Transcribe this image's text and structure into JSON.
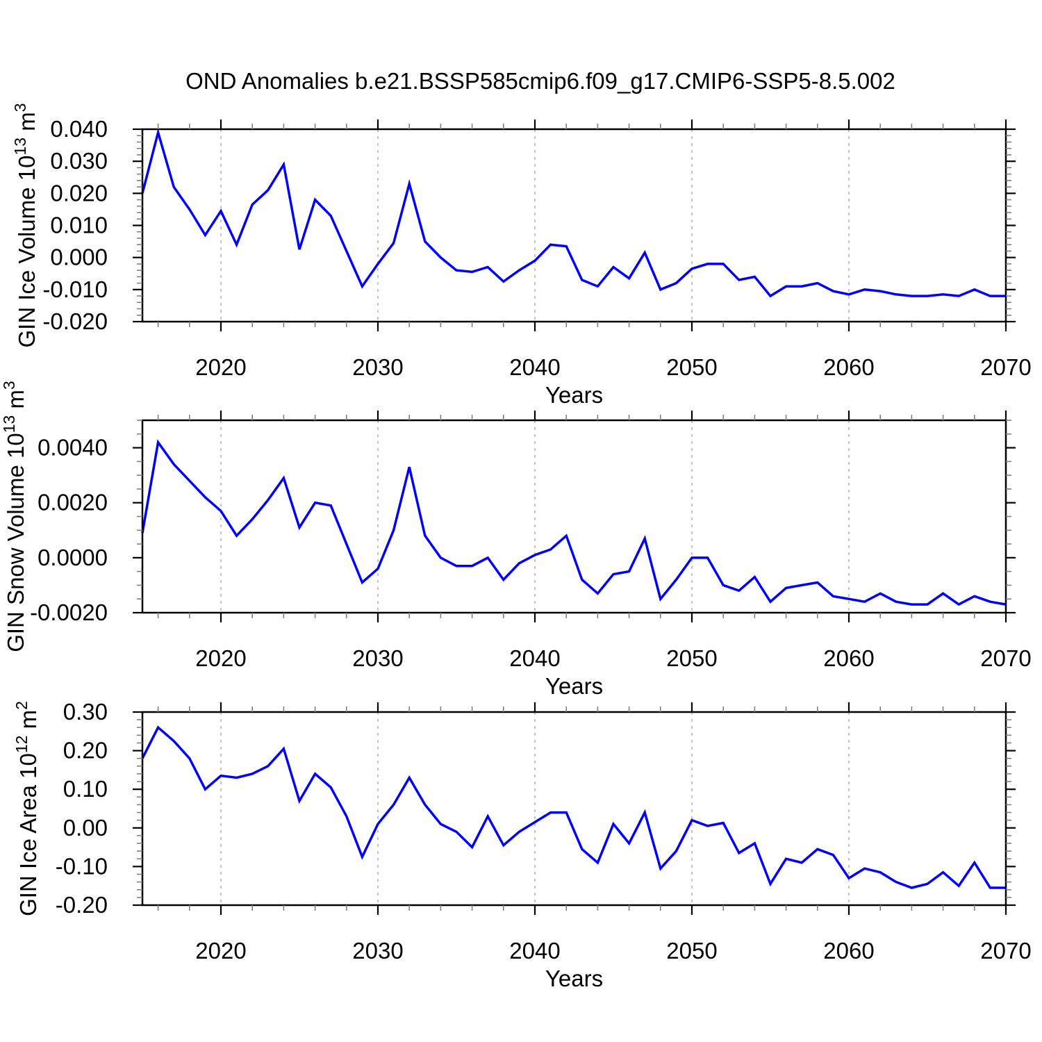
{
  "title": "OND Anomalies b.e21.BSSP585cmip6.f09_g17.CMIP6-SSP5-8.5.002",
  "colors": {
    "line": "#0000ff",
    "axis": "#000000",
    "grid": "#aaaaaa",
    "minor_tick": "#808080",
    "background": "#ffffff"
  },
  "x_axis": {
    "label": "Years",
    "min": 2015,
    "max": 2070,
    "major_ticks": [
      2020,
      2030,
      2040,
      2050,
      2060,
      2070
    ],
    "minor_step": 2,
    "grid_years": [
      2020,
      2030,
      2040,
      2050,
      2060
    ]
  },
  "years": [
    2015,
    2016,
    2017,
    2018,
    2019,
    2020,
    2021,
    2022,
    2023,
    2024,
    2025,
    2026,
    2027,
    2028,
    2029,
    2030,
    2031,
    2032,
    2033,
    2034,
    2035,
    2036,
    2037,
    2038,
    2039,
    2040,
    2041,
    2042,
    2043,
    2044,
    2045,
    2046,
    2047,
    2048,
    2049,
    2050,
    2051,
    2052,
    2053,
    2054,
    2055,
    2056,
    2057,
    2058,
    2059,
    2060,
    2061,
    2062,
    2063,
    2064,
    2065,
    2066,
    2067,
    2068,
    2069,
    2070
  ],
  "chart_data": [
    {
      "type": "line",
      "name": "gin-ice-volume",
      "ylabel": "GIN Ice Volume 10^13 m^3",
      "ylabel_parts": [
        {
          "t": "GIN Ice Volume 10"
        },
        {
          "sup": "13"
        },
        {
          "t": " m"
        },
        {
          "sup": "3"
        }
      ],
      "ylim": [
        -0.02,
        0.04
      ],
      "ytick_step": 0.01,
      "yminor_step": 0.002,
      "ytick_decimals": 3,
      "grid": true,
      "legend": "none",
      "values": [
        0.02,
        0.039,
        0.022,
        0.015,
        0.007,
        0.0145,
        0.004,
        0.0165,
        0.021,
        0.029,
        0.0025,
        0.018,
        0.013,
        0.002,
        -0.009,
        -0.002,
        0.0045,
        0.023,
        0.005,
        0.0,
        -0.004,
        -0.0045,
        -0.003,
        -0.0075,
        -0.004,
        -0.001,
        0.004,
        0.0035,
        -0.007,
        -0.009,
        -0.003,
        -0.0065,
        0.0015,
        -0.01,
        -0.008,
        -0.0035,
        -0.002,
        -0.002,
        -0.007,
        -0.006,
        -0.012,
        -0.009,
        -0.009,
        -0.008,
        -0.0105,
        -0.0115,
        -0.01,
        -0.0105,
        -0.0115,
        -0.012,
        -0.012,
        -0.0115,
        -0.012,
        -0.01,
        -0.012,
        -0.012
      ]
    },
    {
      "type": "line",
      "name": "gin-snow-volume",
      "ylabel": "GIN Snow Volume 10^13 m^3",
      "ylabel_parts": [
        {
          "t": "GIN Snow Volume 10"
        },
        {
          "sup": "13"
        },
        {
          "t": " m"
        },
        {
          "sup": "3"
        }
      ],
      "ylim": [
        -0.002,
        0.005
      ],
      "ytick_step": 0.002,
      "yminor_step": 0.0005,
      "ytick_decimals": 4,
      "grid": true,
      "legend": "none",
      "values": [
        0.0009,
        0.0042,
        0.0034,
        0.0028,
        0.0022,
        0.0017,
        0.0008,
        0.0014,
        0.0021,
        0.0029,
        0.0011,
        0.002,
        0.0019,
        0.0005,
        -0.0009,
        -0.0004,
        0.001,
        0.0033,
        0.0008,
        0.0,
        -0.0003,
        -0.0003,
        0.0,
        -0.0008,
        -0.0002,
        0.0001,
        0.0003,
        0.0008,
        -0.0008,
        -0.0013,
        -0.0006,
        -0.0005,
        0.0007,
        -0.0015,
        -0.0008,
        0.0,
        0.0,
        -0.001,
        -0.0012,
        -0.0007,
        -0.0016,
        -0.0011,
        -0.001,
        -0.0009,
        -0.0014,
        -0.0015,
        -0.0016,
        -0.0013,
        -0.0016,
        -0.0017,
        -0.0017,
        -0.0013,
        -0.0017,
        -0.0014,
        -0.0016,
        -0.0017
      ]
    },
    {
      "type": "line",
      "name": "gin-ice-area",
      "ylabel": "GIN Ice Area 10^12 m^2",
      "ylabel_parts": [
        {
          "t": "GIN Ice Area 10"
        },
        {
          "sup": "12"
        },
        {
          "t": " m"
        },
        {
          "sup": "2"
        }
      ],
      "ylim": [
        -0.2,
        0.3
      ],
      "ytick_step": 0.1,
      "yminor_step": 0.02,
      "ytick_decimals": 2,
      "grid": true,
      "legend": "none",
      "values": [
        0.18,
        0.26,
        0.225,
        0.18,
        0.1,
        0.135,
        0.13,
        0.14,
        0.16,
        0.205,
        0.07,
        0.14,
        0.105,
        0.03,
        -0.075,
        0.01,
        0.06,
        0.13,
        0.06,
        0.01,
        -0.01,
        -0.05,
        0.03,
        -0.045,
        -0.01,
        0.015,
        0.04,
        0.04,
        -0.055,
        -0.09,
        0.01,
        -0.04,
        0.04,
        -0.105,
        -0.06,
        0.02,
        0.005,
        0.013,
        -0.065,
        -0.04,
        -0.145,
        -0.08,
        -0.09,
        -0.055,
        -0.07,
        -0.13,
        -0.105,
        -0.115,
        -0.14,
        -0.155,
        -0.145,
        -0.115,
        -0.15,
        -0.09,
        -0.155,
        -0.155
      ]
    }
  ]
}
